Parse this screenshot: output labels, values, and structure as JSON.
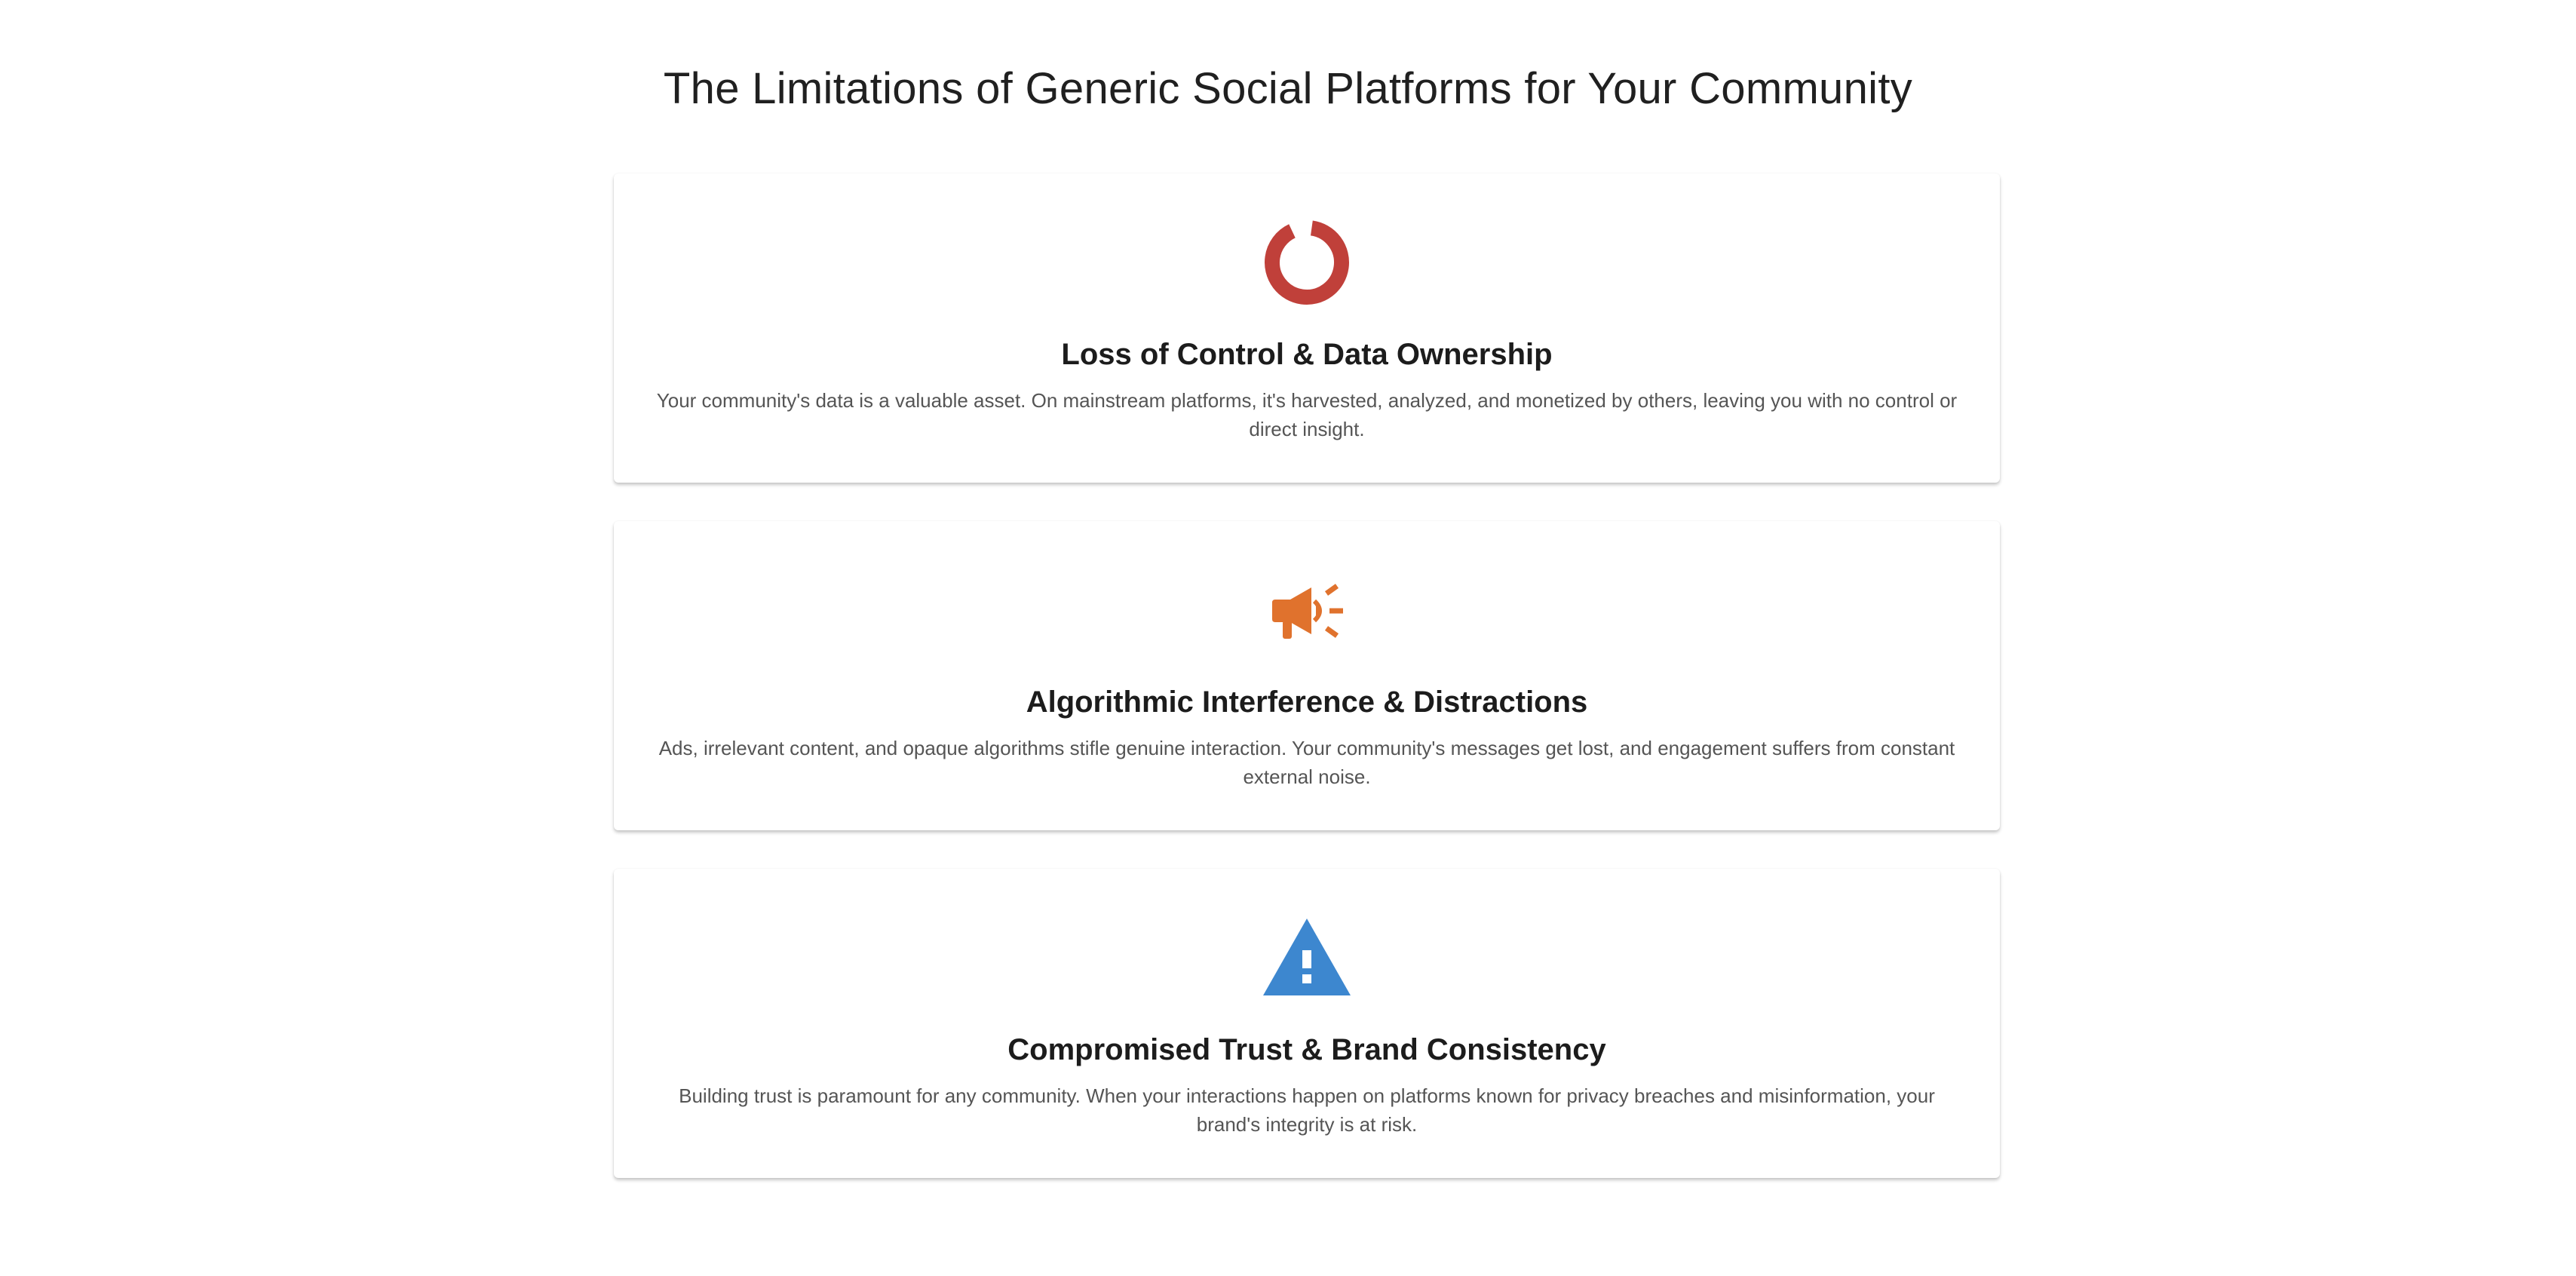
{
  "page": {
    "title": "The Limitations of Generic Social Platforms for Your Community"
  },
  "cards": [
    {
      "title": "Loss of Control & Data Ownership",
      "text": "Your community's data is a valuable asset. On mainstream platforms, it's harvested, analyzed, and monetized by others, leaving you with no control or direct insight.",
      "icon": "donut-ring-icon",
      "color": "#c0403a"
    },
    {
      "title": "Algorithmic Interference & Distractions",
      "text": "Ads, irrelevant content, and opaque algorithms stifle genuine interaction. Your community's messages get lost, and engagement suffers from constant external noise.",
      "icon": "megaphone-icon",
      "color": "#e0722d"
    },
    {
      "title": "Compromised Trust & Brand Consistency",
      "text": "Building trust is paramount for any community. When your interactions happen on platforms known for privacy breaches and misinformation, your brand's integrity is at risk.",
      "icon": "warning-triangle-icon",
      "color": "#3d87cf"
    }
  ]
}
